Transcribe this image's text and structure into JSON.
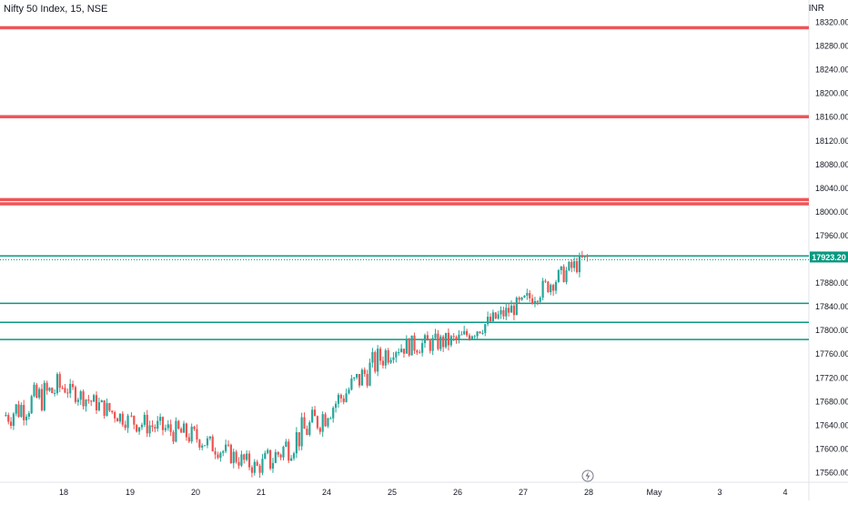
{
  "symbol_title": "Nifty 50 Index, 15, NSE",
  "currency": "INR",
  "last_price_label": "17923.20",
  "colors": {
    "up": "#26a69a",
    "down": "#ef5350",
    "resistance": "#f05457",
    "support": "#089981",
    "text": "#131722",
    "grid": "#e0e3eb"
  },
  "event_icon": "lightning-bolt-icon",
  "chart_data": {
    "type": "candlestick",
    "ylim": [
      17530,
      18340
    ],
    "yticks": [
      "17560.00",
      "17600.00",
      "17640.00",
      "17680.00",
      "17720.00",
      "17760.00",
      "17800.00",
      "17840.00",
      "17880.00",
      "17920.00",
      "17960.00",
      "18000.00",
      "18040.00",
      "18080.00",
      "18120.00",
      "18160.00",
      "18200.00",
      "18240.00",
      "18280.00",
      "18320.00"
    ],
    "xticks": [
      "18",
      "19",
      "20",
      "21",
      "24",
      "25",
      "26",
      "27",
      "28",
      "May",
      "3",
      "4"
    ],
    "resistance_levels": [
      18310,
      18160,
      18020,
      18013
    ],
    "support_levels": [
      17925,
      17845,
      17813,
      17784
    ],
    "last_price": 17923.2,
    "segments": [
      {
        "day": "18",
        "start": 17655,
        "end": 17705,
        "high": 17752,
        "low": 17595
      },
      {
        "day": "19",
        "start": 17705,
        "end": 17648,
        "high": 17712,
        "low": 17622
      },
      {
        "day": "20",
        "start": 17648,
        "end": 17620,
        "high": 17690,
        "low": 17580
      },
      {
        "day": "21",
        "start": 17620,
        "end": 17565,
        "high": 17652,
        "low": 17556
      },
      {
        "day": "24",
        "start": 17565,
        "end": 17660,
        "high": 17712,
        "low": 17556
      },
      {
        "day": "25",
        "start": 17660,
        "end": 17770,
        "high": 17792,
        "low": 17648
      },
      {
        "day": "26",
        "start": 17770,
        "end": 17782,
        "high": 17808,
        "low": 17712
      },
      {
        "day": "27",
        "start": 17782,
        "end": 17845,
        "high": 17858,
        "low": 17772
      },
      {
        "day": "28",
        "start": 17845,
        "end": 17923.2,
        "high": 17928,
        "low": 17835
      }
    ]
  }
}
